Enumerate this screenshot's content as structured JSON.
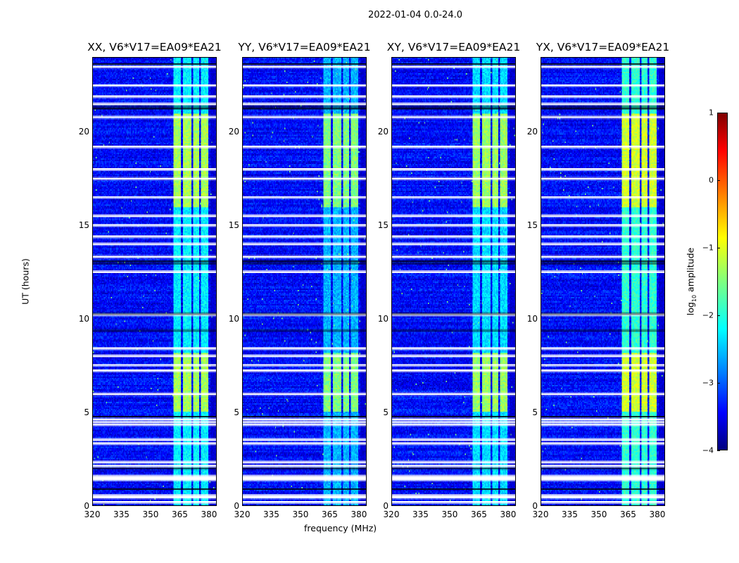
{
  "suptitle": "2022-01-04 0.0-24.0",
  "chart_data": {
    "type": "heatmap",
    "xlabel": "frequency (MHz)",
    "ylabel": "UT (hours)",
    "xlim": [
      320,
      384
    ],
    "ylim": [
      0,
      24
    ],
    "xticks": [
      "320",
      "335",
      "350",
      "365",
      "380"
    ],
    "xtick_values": [
      320,
      335,
      350,
      365,
      380
    ],
    "yticks": [
      "0",
      "5",
      "10",
      "15",
      "20"
    ],
    "ytick_values": [
      0,
      5,
      10,
      15,
      20
    ],
    "panels": [
      {
        "title": "XX, V6*V17=EA09*EA21",
        "rfi_strength": 1.0
      },
      {
        "title": "YY, V6*V17=EA09*EA21",
        "rfi_strength": 1.15
      },
      {
        "title": "XY, V6*V17=EA09*EA21",
        "rfi_strength": 1.05
      },
      {
        "title": "YX, V6*V17=EA09*EA21",
        "rfi_strength": 0.85
      }
    ],
    "flagged_rows_hours": [
      0.15,
      0.4,
      0.5,
      1.35,
      1.45,
      1.55,
      2.1,
      2.3,
      3.3,
      3.5,
      4.3,
      4.45,
      4.6,
      5.95,
      7.2,
      7.5,
      8.0,
      8.4,
      10.2,
      12.5,
      13.3,
      14.0,
      14.4,
      15.0,
      15.5,
      16.5,
      17.5,
      18.0,
      19.2,
      20.8,
      21.5,
      21.9,
      22.5,
      23.5
    ],
    "dark_rows_hours": [
      0.9,
      2.0,
      4.8,
      9.4,
      10.3,
      13.0,
      13.1,
      21.3,
      21.4,
      23.7
    ],
    "rfi_bands_mhz": [
      [
        362,
        366
      ],
      [
        367,
        371
      ],
      [
        372,
        375
      ],
      [
        376,
        380
      ]
    ],
    "strong_time_ranges_hours": [
      [
        5.0,
        8.2
      ],
      [
        16.0,
        21.0
      ]
    ],
    "colorbar": {
      "label": "log10 amplitude",
      "label_main": "log",
      "label_sub": "10",
      "label_rest": " amplitude",
      "range": [
        -4,
        1
      ],
      "ticks": [
        "1",
        "0",
        "−1",
        "−2",
        "−3",
        "−4"
      ],
      "tick_values": [
        1,
        0,
        -1,
        -2,
        -3,
        -4
      ],
      "colormap": "jet"
    }
  }
}
